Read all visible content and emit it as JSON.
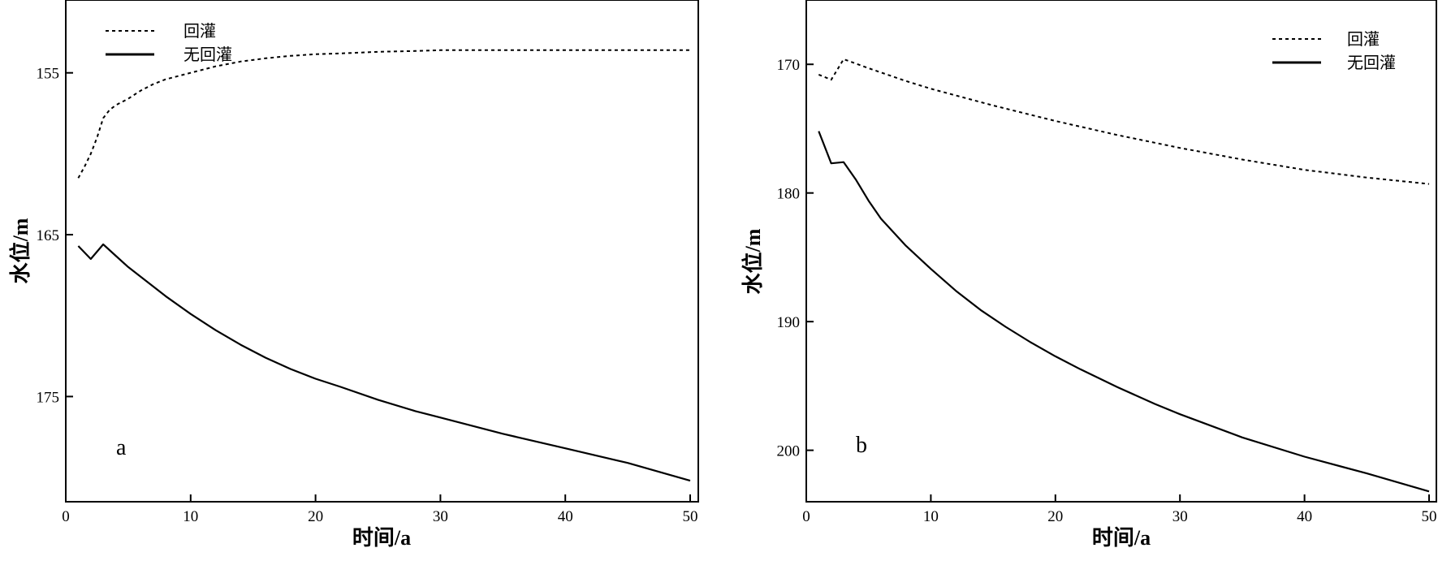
{
  "chart_data": [
    {
      "type": "line",
      "panel_label": "a",
      "xlabel": "时间/a",
      "ylabel": "水位/m",
      "xlim": [
        0,
        50
      ],
      "ylim": [
        150.5,
        181.5
      ],
      "y_inverted": true,
      "x_ticks": [
        0,
        10,
        20,
        30,
        40,
        50
      ],
      "y_ticks": [
        155,
        165,
        175
      ],
      "legend_position": "top-left",
      "series": [
        {
          "name": "回灌",
          "style": "dashed",
          "x": [
            1,
            1.5,
            2,
            2.5,
            3,
            3.5,
            4,
            5,
            6,
            7,
            8,
            9,
            10,
            12,
            14,
            16,
            18,
            20,
            22,
            25,
            28,
            30,
            35,
            40,
            45,
            50
          ],
          "y": [
            161.5,
            160.8,
            160.0,
            159.0,
            157.8,
            157.3,
            157.0,
            156.6,
            156.1,
            155.7,
            155.4,
            155.2,
            155.0,
            154.6,
            154.3,
            154.1,
            153.95,
            153.85,
            153.8,
            153.7,
            153.65,
            153.6,
            153.6,
            153.6,
            153.6,
            153.6
          ]
        },
        {
          "name": "无回灌",
          "style": "solid",
          "x": [
            1,
            2,
            3,
            4,
            5,
            6,
            8,
            10,
            12,
            14,
            16,
            18,
            20,
            22,
            25,
            28,
            30,
            35,
            40,
            45,
            50
          ],
          "y": [
            165.7,
            166.5,
            165.6,
            166.3,
            167.0,
            167.6,
            168.8,
            169.9,
            170.9,
            171.8,
            172.6,
            173.3,
            173.9,
            174.4,
            175.2,
            175.9,
            176.3,
            177.3,
            178.2,
            179.1,
            180.2
          ]
        }
      ]
    },
    {
      "type": "line",
      "panel_label": "b",
      "xlabel": "时间/a",
      "ylabel": "水位/m",
      "xlim": [
        0,
        50
      ],
      "ylim": [
        165,
        204
      ],
      "y_inverted": true,
      "x_ticks": [
        0,
        10,
        20,
        30,
        40,
        50
      ],
      "y_ticks": [
        170,
        180,
        190,
        200
      ],
      "legend_position": "top-right",
      "series": [
        {
          "name": "回灌",
          "style": "dashed",
          "x": [
            1,
            2,
            3,
            5,
            8,
            10,
            15,
            20,
            25,
            30,
            35,
            40,
            45,
            50
          ],
          "y": [
            170.8,
            171.2,
            169.6,
            170.3,
            171.3,
            171.9,
            173.2,
            174.4,
            175.5,
            176.5,
            177.4,
            178.2,
            178.8,
            179.3
          ]
        },
        {
          "name": "无回灌",
          "style": "solid",
          "x": [
            1,
            2,
            3,
            4,
            5,
            6,
            8,
            10,
            12,
            14,
            16,
            18,
            20,
            22,
            25,
            28,
            30,
            35,
            40,
            45,
            50
          ],
          "y": [
            175.2,
            177.7,
            177.6,
            179.0,
            180.6,
            182.0,
            184.1,
            185.9,
            187.6,
            189.1,
            190.4,
            191.6,
            192.7,
            193.7,
            195.1,
            196.4,
            197.2,
            199.0,
            200.5,
            201.8,
            203.2
          ]
        }
      ]
    }
  ]
}
